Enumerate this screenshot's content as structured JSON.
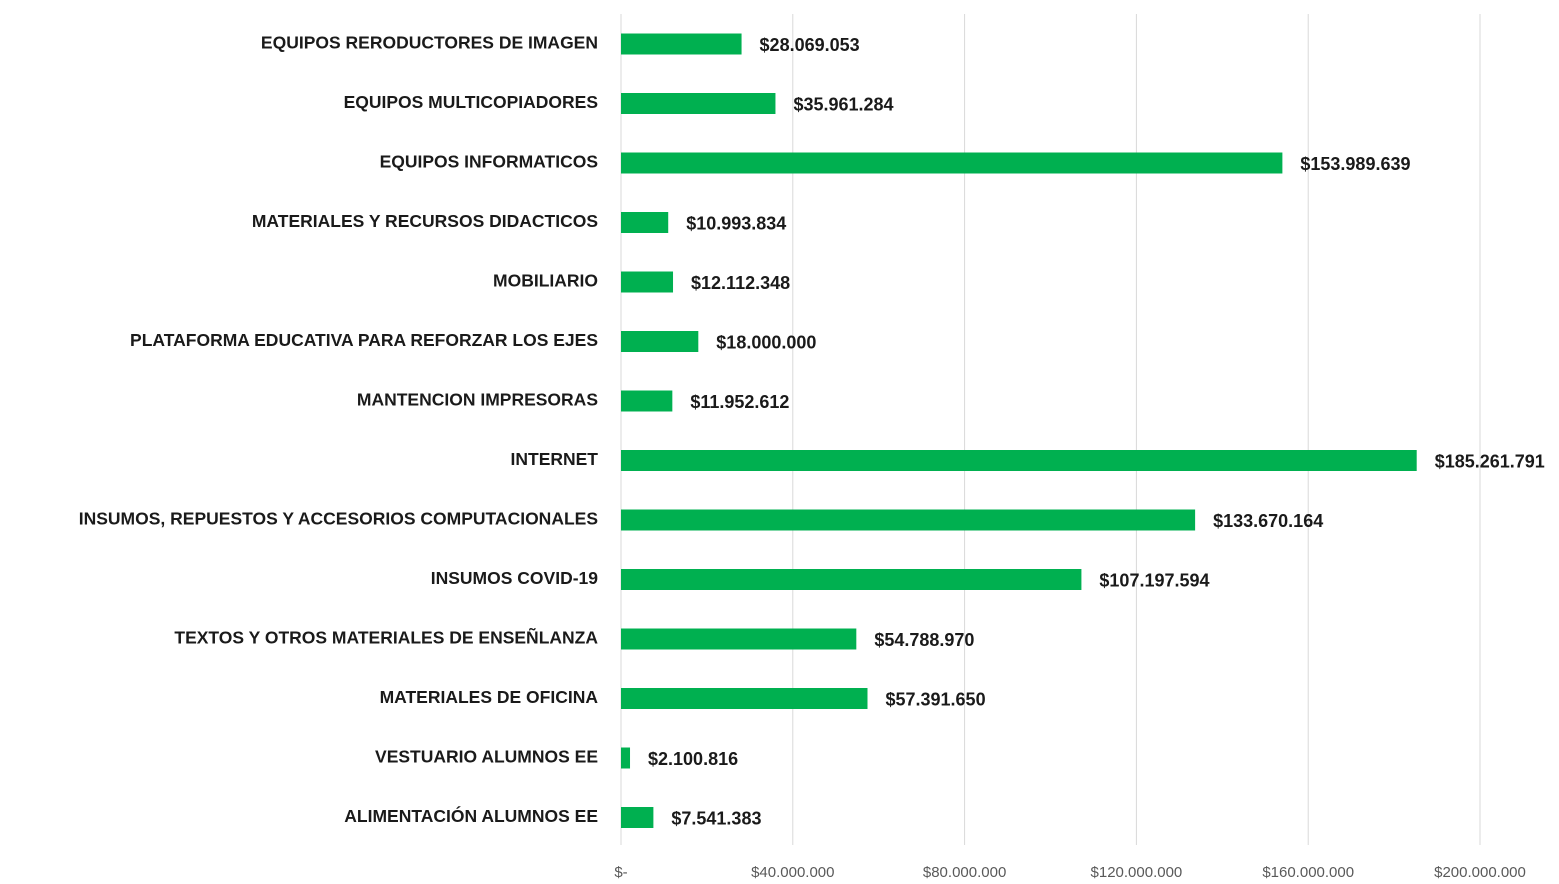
{
  "chart_data": {
    "type": "bar",
    "orientation": "horizontal",
    "color": "#00b050",
    "grid": true,
    "categories": [
      "EQUIPOS RERODUCTORES DE IMAGEN",
      "EQUIPOS MULTICOPIADORES",
      "EQUIPOS INFORMATICOS",
      "MATERIALES Y RECURSOS DIDACTICOS",
      "MOBILIARIO",
      "PLATAFORMA EDUCATIVA PARA REFORZAR LOS EJES",
      "MANTENCION IMPRESORAS",
      "INTERNET",
      "INSUMOS, REPUESTOS Y ACCESORIOS COMPUTACIONALES",
      "INSUMOS COVID-19",
      "TEXTOS Y OTROS MATERIALES DE ENSEÑLANZA",
      "MATERIALES DE OFICINA",
      "VESTUARIO ALUMNOS EE",
      "ALIMENTACIÓN ALUMNOS EE"
    ],
    "values": [
      28069053,
      35961284,
      153989639,
      10993834,
      12112348,
      18000000,
      11952612,
      185261791,
      133670164,
      107197594,
      54788970,
      57391650,
      2100816,
      7541383
    ],
    "value_labels": [
      "$28.069.053",
      "$35.961.284",
      "$153.989.639",
      "$10.993.834",
      "$12.112.348",
      "$18.000.000",
      "$11.952.612",
      "$185.261.791",
      "$133.670.164",
      "$107.197.594",
      "$54.788.970",
      "$57.391.650",
      "$2.100.816",
      "$7.541.383"
    ],
    "xlim": [
      0,
      200000000
    ],
    "xticks": [
      {
        "value": 0,
        "label": "$-"
      },
      {
        "value": 40000000,
        "label": "$40.000.000"
      },
      {
        "value": 80000000,
        "label": "$80.000.000"
      },
      {
        "value": 120000000,
        "label": "$120.000.000"
      },
      {
        "value": 160000000,
        "label": "$160.000.000"
      },
      {
        "value": 200000000,
        "label": "$200.000.000"
      }
    ]
  }
}
